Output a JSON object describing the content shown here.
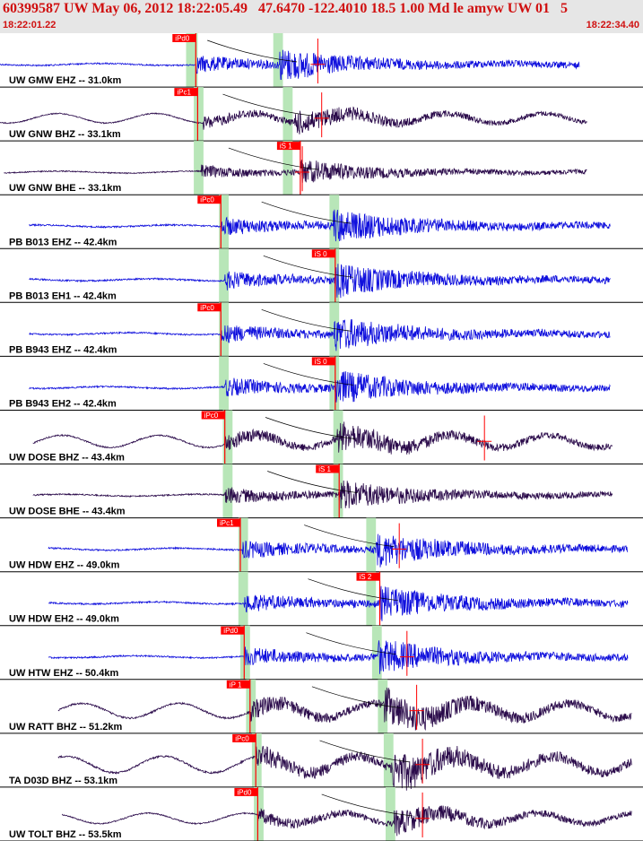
{
  "header": {
    "title": "60399587 UW May 06, 2012 18:22:05.49   47.6470 -122.4010 18.5 1.00 Md le amyw UW 01   5",
    "time_start": "18:22:01.22",
    "time_end": "18:22:34.40"
  },
  "colors": {
    "blue_trace": "#1010dd",
    "dark_trace": "#2a0a4a",
    "pick_red": "#ff0000",
    "window_green": "#b8e6b8",
    "header_bg": "#e6e6e6",
    "title_red": "#d01010"
  },
  "chart_data": {
    "type": "line",
    "x_unit": "s after 18:22:01.22",
    "x_range": [
      0.0,
      33.18
    ],
    "traces": [
      {
        "label": "UW GMW EHZ -- 31.0km",
        "color": "blue",
        "trace_start": 0.0,
        "trace_end": 29.9,
        "amp": 0.75,
        "long_period": false,
        "onset_p": 10.1,
        "onset_s": 14.4,
        "pick_label": "iPd0",
        "pick_phase": "P",
        "pick_time": 10.1,
        "red_mark": 16.4,
        "green_windows": [
          [
            9.6,
            10.2
          ],
          [
            14.1,
            14.6
          ]
        ]
      },
      {
        "label": "UW GNW BHZ -- 33.1km",
        "color": "dark",
        "trace_start": 0.0,
        "trace_end": 30.3,
        "amp": 0.55,
        "long_period": true,
        "onset_p": 10.5,
        "onset_s": 15.2,
        "pick_label": "iPc1",
        "pick_phase": "P",
        "pick_time": 10.2,
        "red_mark": 16.6,
        "green_windows": [
          [
            10.0,
            10.5
          ],
          [
            14.6,
            15.1
          ]
        ]
      },
      {
        "label": "UW GNW BHE -- 33.1km",
        "color": "dark",
        "trace_start": 0.2,
        "trace_end": 30.3,
        "amp": 0.55,
        "long_period": false,
        "onset_p": 10.4,
        "onset_s": 15.5,
        "pick_label": "iS 1",
        "pick_phase": "S",
        "pick_time": 15.5,
        "red_mark": 15.6,
        "green_windows": [
          [
            10.0,
            10.5
          ],
          [
            14.6,
            15.1
          ]
        ]
      },
      {
        "label": "PB B013 EHZ -- 42.4km",
        "color": "blue",
        "trace_start": 1.5,
        "trace_end": 31.5,
        "amp": 0.8,
        "long_period": false,
        "onset_p": 11.4,
        "onset_s": 17.2,
        "pick_label": "iPc0",
        "pick_phase": "P",
        "pick_time": 11.4,
        "red_mark": null,
        "green_windows": [
          [
            11.3,
            11.8
          ],
          [
            17.0,
            17.5
          ]
        ]
      },
      {
        "label": "PB B013 EH1 -- 42.4km",
        "color": "blue",
        "trace_start": 1.5,
        "trace_end": 31.5,
        "amp": 0.8,
        "long_period": false,
        "onset_p": 11.6,
        "onset_s": 17.3,
        "pick_label": "iS 0",
        "pick_phase": "S",
        "pick_time": 17.3,
        "red_mark": null,
        "green_windows": [
          [
            11.3,
            11.8
          ],
          [
            17.0,
            17.5
          ]
        ]
      },
      {
        "label": "PB B943 EHZ -- 42.4km",
        "color": "blue",
        "trace_start": 1.5,
        "trace_end": 31.5,
        "amp": 0.8,
        "long_period": false,
        "onset_p": 11.4,
        "onset_s": 17.2,
        "pick_label": "iPc0",
        "pick_phase": "P",
        "pick_time": 11.4,
        "red_mark": null,
        "green_windows": [
          [
            11.3,
            11.8
          ],
          [
            17.0,
            17.5
          ]
        ]
      },
      {
        "label": "PB B943 EH2 -- 42.4km",
        "color": "blue",
        "trace_start": 1.5,
        "trace_end": 31.5,
        "amp": 0.8,
        "long_period": false,
        "onset_p": 11.6,
        "onset_s": 17.3,
        "pick_label": "iS 0",
        "pick_phase": "S",
        "pick_time": 17.3,
        "red_mark": null,
        "green_windows": [
          [
            11.3,
            11.8
          ],
          [
            17.0,
            17.5
          ]
        ]
      },
      {
        "label": "UW DOSE BHZ -- 43.4km",
        "color": "dark",
        "trace_start": 1.7,
        "trace_end": 31.6,
        "amp": 0.7,
        "long_period": true,
        "onset_p": 11.6,
        "onset_s": 17.4,
        "pick_label": "iPc0",
        "pick_phase": "P",
        "pick_time": 11.6,
        "red_mark": 25.0,
        "green_windows": [
          [
            11.5,
            12.0
          ],
          [
            17.2,
            17.7
          ]
        ]
      },
      {
        "label": "UW DOSE BHE -- 43.4km",
        "color": "dark",
        "trace_start": 1.7,
        "trace_end": 31.6,
        "amp": 0.7,
        "long_period": false,
        "onset_p": 11.6,
        "onset_s": 17.5,
        "pick_label": "iS 1",
        "pick_phase": "S",
        "pick_time": 17.5,
        "red_mark": null,
        "green_windows": [
          [
            11.5,
            12.0
          ],
          [
            17.2,
            17.7
          ]
        ]
      },
      {
        "label": "UW HDW EHZ -- 49.0km",
        "color": "blue",
        "trace_start": 2.5,
        "trace_end": 32.4,
        "amp": 0.8,
        "long_period": false,
        "onset_p": 12.5,
        "onset_s": 19.4,
        "pick_label": "iPc1",
        "pick_phase": "P",
        "pick_time": 12.4,
        "red_mark": 20.6,
        "green_windows": [
          [
            12.3,
            12.8
          ],
          [
            18.9,
            19.4
          ]
        ]
      },
      {
        "label": "UW HDW EH2 -- 49.0km",
        "color": "blue",
        "trace_start": 2.5,
        "trace_end": 32.4,
        "amp": 0.8,
        "long_period": false,
        "onset_p": 12.6,
        "onset_s": 19.6,
        "pick_label": "iS 2",
        "pick_phase": "S",
        "pick_time": 19.6,
        "red_mark": null,
        "green_windows": [
          [
            12.3,
            12.8
          ],
          [
            18.9,
            19.4
          ]
        ]
      },
      {
        "label": "UW HTW EHZ -- 50.4km",
        "color": "blue",
        "trace_start": 2.5,
        "trace_end": 32.4,
        "amp": 0.8,
        "long_period": false,
        "onset_p": 12.6,
        "onset_s": 19.5,
        "pick_label": "iPd0",
        "pick_phase": "P",
        "pick_time": 12.6,
        "red_mark": 21.0,
        "green_windows": [
          [
            12.4,
            12.9
          ],
          [
            19.2,
            19.7
          ]
        ]
      },
      {
        "label": "UW RATT BHZ -- 51.2km",
        "color": "dark",
        "trace_start": 3.0,
        "trace_end": 32.6,
        "amp": 0.85,
        "long_period": true,
        "onset_p": 12.9,
        "onset_s": 19.8,
        "pick_label": "iP 1",
        "pick_phase": "P",
        "pick_time": 12.9,
        "red_mark": 21.5,
        "green_windows": [
          [
            12.7,
            13.2
          ],
          [
            19.5,
            20.0
          ]
        ]
      },
      {
        "label": "TA D03D BHZ -- 53.1km",
        "color": "dark",
        "trace_start": 3.0,
        "trace_end": 32.6,
        "amp": 0.95,
        "long_period": true,
        "onset_p": 13.2,
        "onset_s": 20.2,
        "pick_label": "iPc0",
        "pick_phase": "P",
        "pick_time": 13.2,
        "red_mark": 21.8,
        "green_windows": [
          [
            13.0,
            13.5
          ],
          [
            19.8,
            20.3
          ]
        ]
      },
      {
        "label": "UW TOLT BHZ -- 53.5km",
        "color": "dark",
        "trace_start": 3.2,
        "trace_end": 32.6,
        "amp": 0.6,
        "long_period": true,
        "onset_p": 13.3,
        "onset_s": 20.3,
        "pick_label": "iPd0",
        "pick_phase": "P",
        "pick_time": 13.3,
        "red_mark": 21.8,
        "green_windows": [
          [
            13.1,
            13.6
          ],
          [
            19.9,
            20.4
          ]
        ]
      }
    ]
  }
}
